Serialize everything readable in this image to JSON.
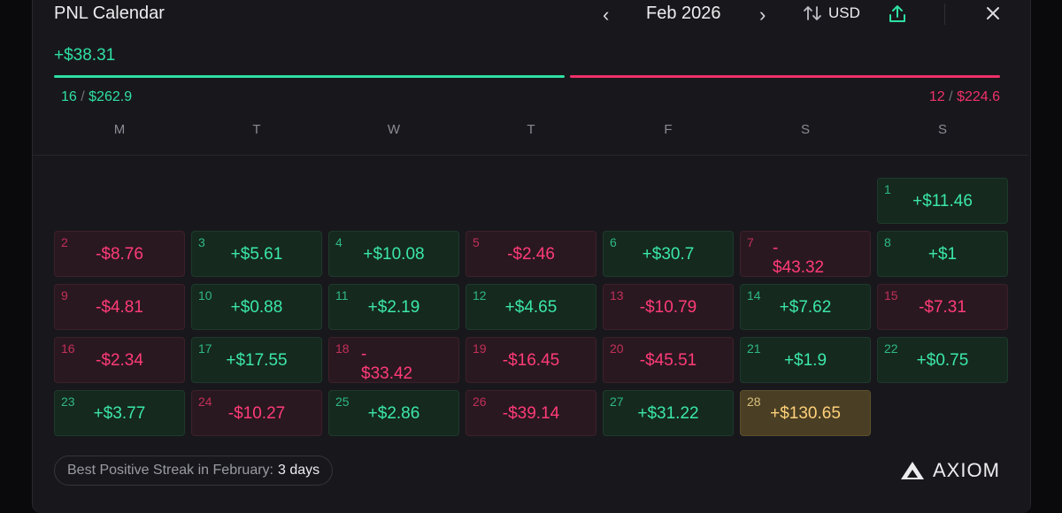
{
  "header": {
    "title": "PNL Calendar",
    "prev_icon": "‹",
    "next_icon": "›",
    "month": "Feb 2026",
    "currency": "USD",
    "close_icon": "×"
  },
  "summary": {
    "total": "+$38.31",
    "positive_days": "16",
    "positive_amount": "$262.9",
    "negative_days": "12",
    "negative_amount": "$224.6",
    "positive_share": 0.54,
    "colors": {
      "positive": "#2fe0a3",
      "negative": "#f0306a"
    }
  },
  "weekdays": [
    "M",
    "T",
    "W",
    "T",
    "F",
    "S",
    "S"
  ],
  "days": [
    {
      "day": "1",
      "value": "+$11.46",
      "type": "pos"
    },
    {
      "day": "2",
      "value": "-$8.76",
      "type": "neg"
    },
    {
      "day": "3",
      "value": "+$5.61",
      "type": "pos"
    },
    {
      "day": "4",
      "value": "+$10.08",
      "type": "pos"
    },
    {
      "day": "5",
      "value": "-$2.46",
      "type": "neg"
    },
    {
      "day": "6",
      "value": "+$30.7",
      "type": "pos"
    },
    {
      "day": "7",
      "value": "-$43.32",
      "type": "neg",
      "wrap": true
    },
    {
      "day": "8",
      "value": "+$1",
      "type": "pos"
    },
    {
      "day": "9",
      "value": "-$4.81",
      "type": "neg"
    },
    {
      "day": "10",
      "value": "+$0.88",
      "type": "pos"
    },
    {
      "day": "11",
      "value": "+$2.19",
      "type": "pos"
    },
    {
      "day": "12",
      "value": "+$4.65",
      "type": "pos"
    },
    {
      "day": "13",
      "value": "-$10.79",
      "type": "neg"
    },
    {
      "day": "14",
      "value": "+$7.62",
      "type": "pos"
    },
    {
      "day": "15",
      "value": "-$7.31",
      "type": "neg"
    },
    {
      "day": "16",
      "value": "-$2.34",
      "type": "neg"
    },
    {
      "day": "17",
      "value": "+$17.55",
      "type": "pos"
    },
    {
      "day": "18",
      "value": "-$33.42",
      "type": "neg",
      "wrap": true
    },
    {
      "day": "19",
      "value": "-$16.45",
      "type": "neg"
    },
    {
      "day": "20",
      "value": "-$45.51",
      "type": "neg"
    },
    {
      "day": "21",
      "value": "+$1.9",
      "type": "pos"
    },
    {
      "day": "22",
      "value": "+$0.75",
      "type": "pos"
    },
    {
      "day": "23",
      "value": "+$3.77",
      "type": "pos"
    },
    {
      "day": "24",
      "value": "-$10.27",
      "type": "neg"
    },
    {
      "day": "25",
      "value": "+$2.86",
      "type": "pos"
    },
    {
      "day": "26",
      "value": "-$39.14",
      "type": "neg"
    },
    {
      "day": "27",
      "value": "+$31.22",
      "type": "pos"
    },
    {
      "day": "28",
      "value": "+$130.65",
      "type": "gold"
    }
  ],
  "streak": {
    "label": "Best Positive Streak in February:",
    "value": "3 days"
  },
  "brand": {
    "name": "AXIOM",
    "logo_icon": "axiom-logo-icon"
  }
}
